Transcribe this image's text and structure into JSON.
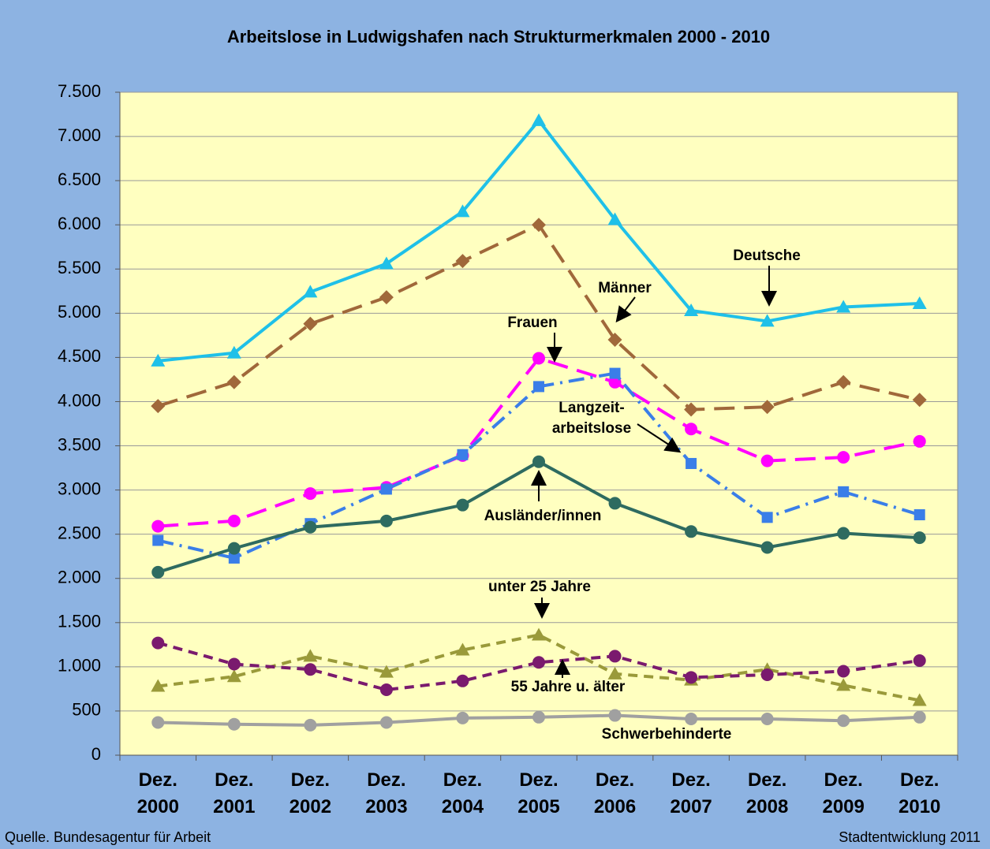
{
  "chart_data": {
    "type": "line",
    "title": "Arbeitslose in Ludwigshafen nach Strukturmerkmalen 2000 - 2010",
    "categories": [
      "Dez. 2000",
      "Dez. 2001",
      "Dez. 2002",
      "Dez. 2003",
      "Dez. 2004",
      "Dez. 2005",
      "Dez. 2006",
      "Dez. 2007",
      "Dez. 2008",
      "Dez. 2009",
      "Dez. 2010"
    ],
    "series": [
      {
        "name": "Deutsche",
        "color": "#1fc0e8",
        "marker": "triangle",
        "dash": "solid",
        "values": [
          4460,
          4550,
          5240,
          5560,
          6150,
          7180,
          6060,
          5030,
          4910,
          5070,
          5110
        ]
      },
      {
        "name": "Männer",
        "color": "#a0683a",
        "marker": "diamond",
        "dash": "long",
        "values": [
          3950,
          4220,
          4880,
          5180,
          5590,
          6000,
          4700,
          3910,
          3940,
          4220,
          4020
        ]
      },
      {
        "name": "Frauen",
        "color": "#ff00ff",
        "marker": "circle",
        "dash": "long",
        "values": [
          2590,
          2650,
          2960,
          3030,
          3390,
          4490,
          4220,
          3690,
          3330,
          3370,
          3550
        ]
      },
      {
        "name": "Langzeit-arbeitslose",
        "color": "#3a7ee8",
        "marker": "square",
        "dash": "dashdot",
        "values": [
          2430,
          2230,
          2620,
          3010,
          3400,
          4170,
          4320,
          3300,
          2690,
          2980,
          2720
        ]
      },
      {
        "name": "Ausländer/innen",
        "color": "#2e6b60",
        "marker": "circle",
        "dash": "solid",
        "values": [
          2070,
          2340,
          2580,
          2650,
          2830,
          3320,
          2850,
          2530,
          2350,
          2510,
          2460
        ]
      },
      {
        "name": "unter 25 Jahre",
        "color": "#9a9a3a",
        "marker": "triangle",
        "dash": "short",
        "values": [
          780,
          890,
          1120,
          940,
          1190,
          1360,
          920,
          850,
          970,
          790,
          620
        ]
      },
      {
        "name": "55 Jahre u. älter",
        "color": "#7a1a6e",
        "marker": "circle",
        "dash": "short",
        "values": [
          1270,
          1030,
          970,
          740,
          840,
          1050,
          1120,
          880,
          910,
          950,
          1070
        ]
      },
      {
        "name": "Schwerbehinderte",
        "color": "#a0a0a0",
        "marker": "circle",
        "dash": "solid",
        "values": [
          370,
          350,
          340,
          370,
          420,
          430,
          450,
          410,
          410,
          390,
          430
        ]
      }
    ],
    "ylim": [
      0,
      7500
    ],
    "yticks": [
      0,
      500,
      {
        "value": 1000,
        "label": "1.000"
      },
      {
        "value": 1500,
        "label": "1.500"
      },
      {
        "value": 2000,
        "label": "2.000"
      },
      {
        "value": 2500,
        "label": "2.500"
      },
      {
        "value": 3000,
        "label": "3.000"
      },
      {
        "value": 3500,
        "label": "3.500"
      },
      {
        "value": 4000,
        "label": "4.000"
      },
      {
        "value": 4500,
        "label": "4.500"
      },
      {
        "value": 5000,
        "label": "5.000"
      },
      {
        "value": 5500,
        "label": "5.500"
      },
      {
        "value": 6000,
        "label": "6.000"
      },
      {
        "value": 6500,
        "label": "6.500"
      },
      {
        "value": 7000,
        "label": "7.000"
      },
      {
        "value": 7500,
        "label": "7.500"
      }
    ],
    "grid": true,
    "source": "Quelle. Bundesagentur für Arbeit",
    "credit": "Stadtentwicklung 2011"
  }
}
